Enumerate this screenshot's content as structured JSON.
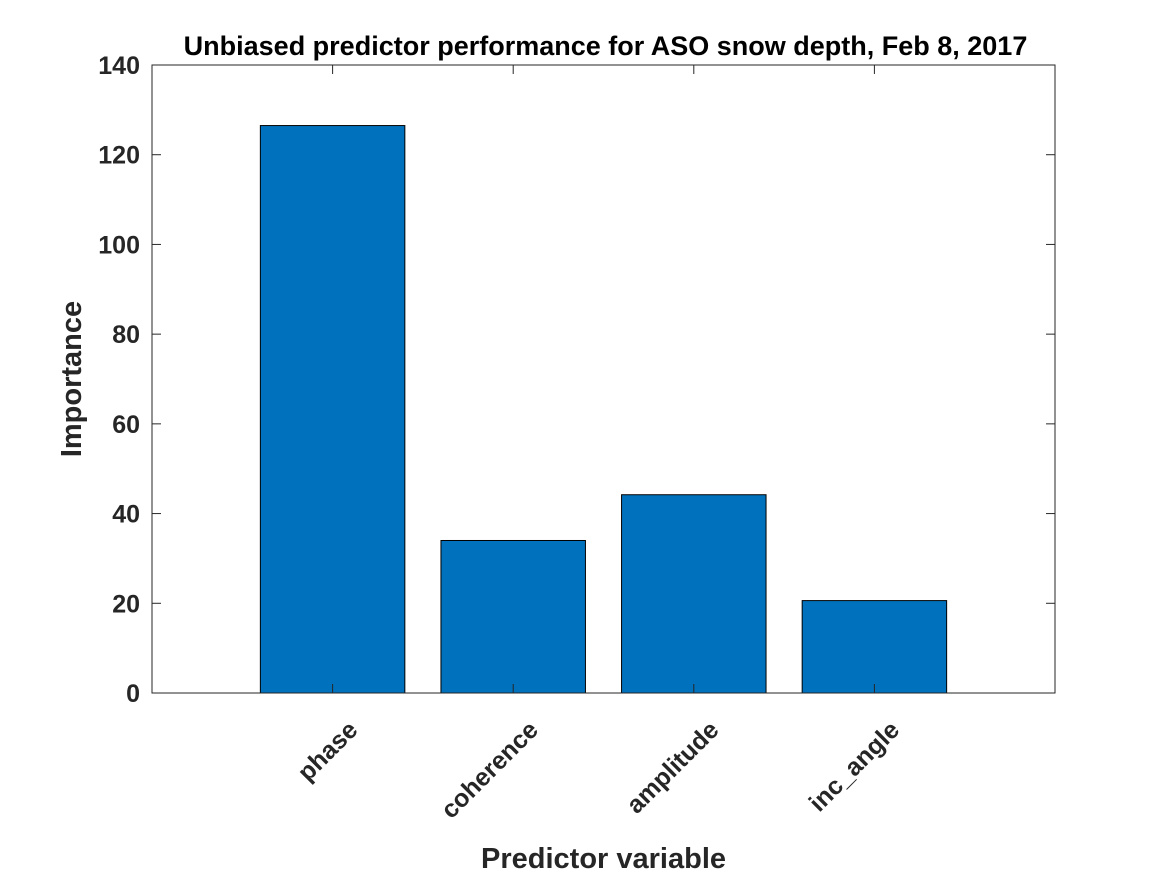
{
  "chart_data": {
    "type": "bar",
    "title": "Unbiased predictor performance for ASO snow depth, Feb 8, 2017",
    "xlabel": "Predictor variable",
    "ylabel": "Importance",
    "categories": [
      "phase",
      "coherence",
      "amplitude",
      "inc_angle"
    ],
    "values": [
      126.5,
      34,
      44.2,
      20.6
    ],
    "ylim": [
      0,
      140
    ],
    "yticks": [
      0,
      20,
      40,
      60,
      80,
      100,
      120,
      140
    ],
    "xlim": [
      0,
      5
    ],
    "bar_color": "#0072BD",
    "grid": false,
    "legend": "none"
  }
}
